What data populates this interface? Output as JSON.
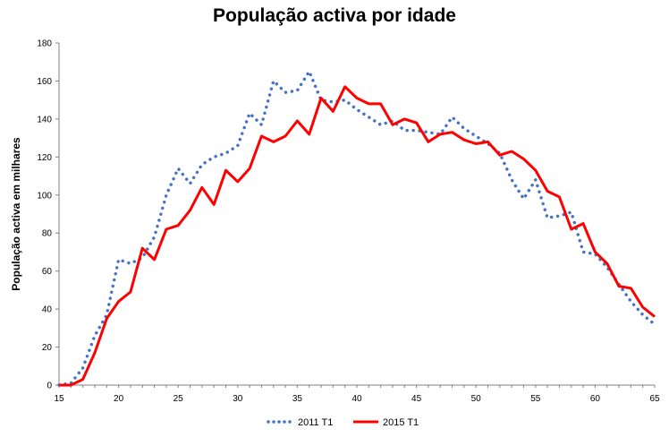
{
  "chart_data": {
    "type": "line",
    "title": "População activa por idade",
    "xlabel": "",
    "ylabel": "População activa em milhares",
    "xlim": [
      15,
      65
    ],
    "ylim": [
      0,
      180
    ],
    "x_ticks": [
      15,
      20,
      25,
      30,
      35,
      40,
      45,
      50,
      55,
      60,
      65
    ],
    "y_ticks": [
      0,
      20,
      40,
      60,
      80,
      100,
      120,
      140,
      160,
      180
    ],
    "grid": false,
    "legend_position": "bottom",
    "x": [
      15,
      16,
      17,
      18,
      19,
      20,
      21,
      22,
      23,
      24,
      25,
      26,
      27,
      28,
      29,
      30,
      31,
      32,
      33,
      34,
      35,
      36,
      37,
      38,
      39,
      40,
      41,
      42,
      43,
      44,
      45,
      46,
      47,
      48,
      49,
      50,
      51,
      52,
      53,
      54,
      55,
      56,
      57,
      58,
      59,
      60,
      61,
      62,
      63,
      64,
      65
    ],
    "series": [
      {
        "name": "2011 T1",
        "color": "#4472C4",
        "style": "dotted",
        "values": [
          0,
          1,
          9,
          26,
          37,
          66,
          64,
          67,
          78,
          100,
          114,
          106,
          116,
          120,
          122,
          126,
          143,
          137,
          160,
          154,
          155,
          165,
          150,
          149,
          150,
          145,
          141,
          137,
          139,
          134,
          134,
          133,
          132,
          141,
          135,
          131,
          127,
          122,
          108,
          98,
          108,
          88,
          89,
          91,
          70,
          69,
          62,
          53,
          44,
          37,
          32
        ]
      },
      {
        "name": "2015 T1",
        "color": "#FF0000",
        "style": "solid",
        "values": [
          0,
          0,
          3,
          17,
          35,
          44,
          49,
          72,
          66,
          82,
          84,
          92,
          104,
          95,
          113,
          107,
          114,
          131,
          128,
          131,
          139,
          132,
          151,
          144,
          157,
          151,
          148,
          148,
          137,
          140,
          138,
          128,
          132,
          133,
          129,
          127,
          128,
          121,
          123,
          119,
          113,
          102,
          99,
          82,
          85,
          70,
          64,
          52,
          51,
          41,
          36
        ]
      }
    ]
  }
}
